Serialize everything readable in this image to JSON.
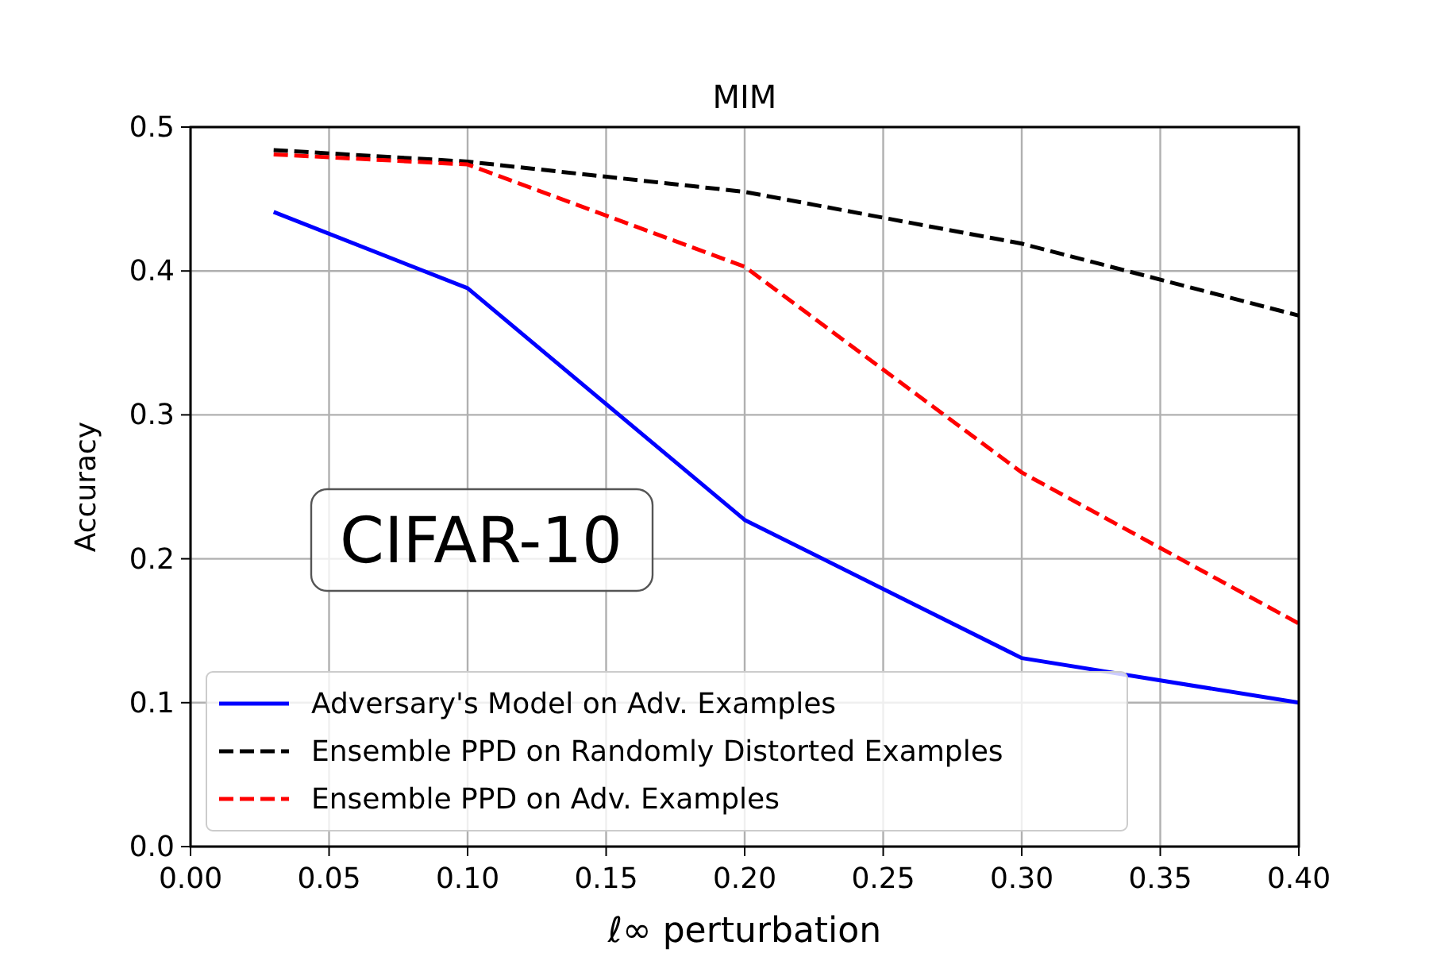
{
  "chart_data": {
    "type": "line",
    "title": "MIM",
    "xlabel": "ℓ∞ perturbation",
    "ylabel": "Accuracy",
    "x": [
      0.03,
      0.1,
      0.2,
      0.3,
      0.4
    ],
    "series": [
      {
        "name": "Adversary's Model on Adv. Examples",
        "color": "#0000ff",
        "line_style": "solid",
        "values": [
          0.441,
          0.388,
          0.227,
          0.131,
          0.1
        ]
      },
      {
        "name": "Ensemble PPD on Randomly Distorted Examples",
        "color": "#000000",
        "line_style": "dashed",
        "values": [
          0.484,
          0.476,
          0.455,
          0.419,
          0.369
        ]
      },
      {
        "name": "Ensemble PPD on Adv. Examples",
        "color": "#ff0000",
        "line_style": "dashed",
        "values": [
          0.481,
          0.474,
          0.403,
          0.26,
          0.155
        ]
      }
    ],
    "xlim": [
      0,
      0.4
    ],
    "xticks": [
      {
        "value": 0,
        "label": "0.00"
      },
      0.05,
      {
        "value": 0.1,
        "label": "0.10"
      },
      0.15,
      {
        "value": 0.2,
        "label": "0.20"
      },
      0.25,
      {
        "value": 0.3,
        "label": "0.30"
      },
      0.35,
      {
        "value": 0.4,
        "label": "0.40"
      }
    ],
    "ylim": [
      0,
      0.5
    ],
    "yticks": [
      {
        "value": 0,
        "label": "0.0"
      },
      0.1,
      0.2,
      0.3,
      0.4,
      0.5
    ],
    "grid": true,
    "legend": "bottom left",
    "marker": "none",
    "annotations": [
      "CIFAR-10"
    ]
  }
}
